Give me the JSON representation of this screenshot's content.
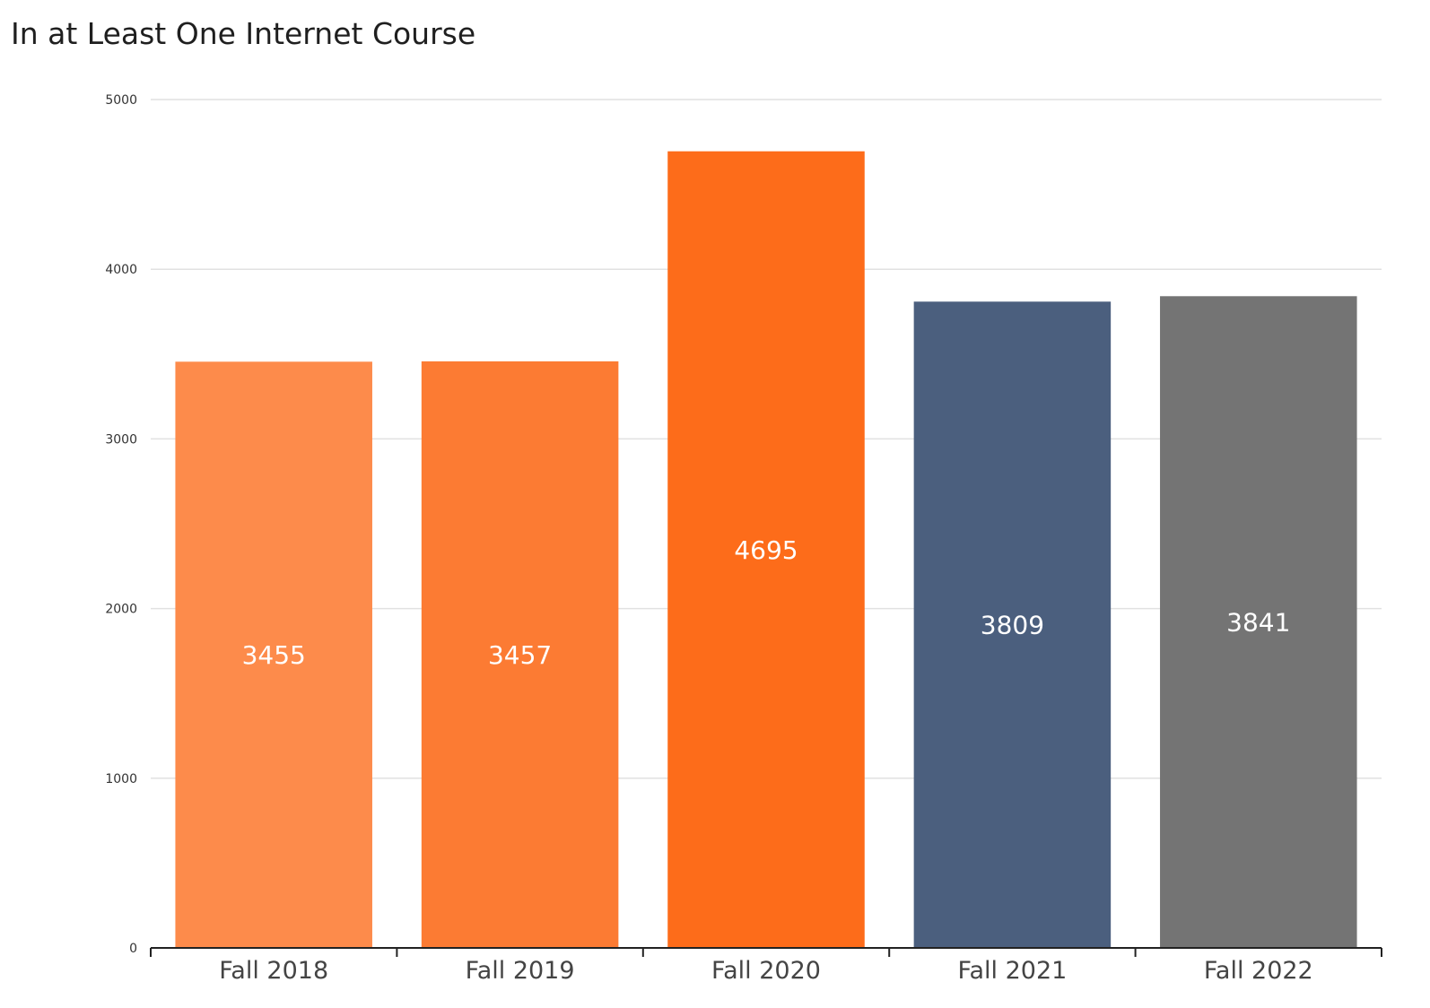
{
  "chart_data": {
    "type": "bar",
    "title": "In at Least One Internet Course",
    "xlabel": "",
    "ylabel": "",
    "categories": [
      "Fall 2018",
      "Fall 2019",
      "Fall 2020",
      "Fall 2021",
      "Fall 2022"
    ],
    "values": [
      3455,
      3457,
      4695,
      3809,
      3841
    ],
    "data_labels": [
      "3455",
      "3457",
      "4695",
      "3809",
      "3841"
    ],
    "colors": [
      "#fd8b4b",
      "#fc7b33",
      "#fd6c1a",
      "#4b5f7e",
      "#747474"
    ],
    "ylim": [
      0,
      5000
    ],
    "yticks": [
      0,
      1000,
      2000,
      3000,
      4000,
      5000
    ],
    "ytick_labels": [
      "0",
      "1000",
      "2000",
      "3000",
      "4000",
      "5000"
    ],
    "grid": true,
    "legend": "none"
  }
}
